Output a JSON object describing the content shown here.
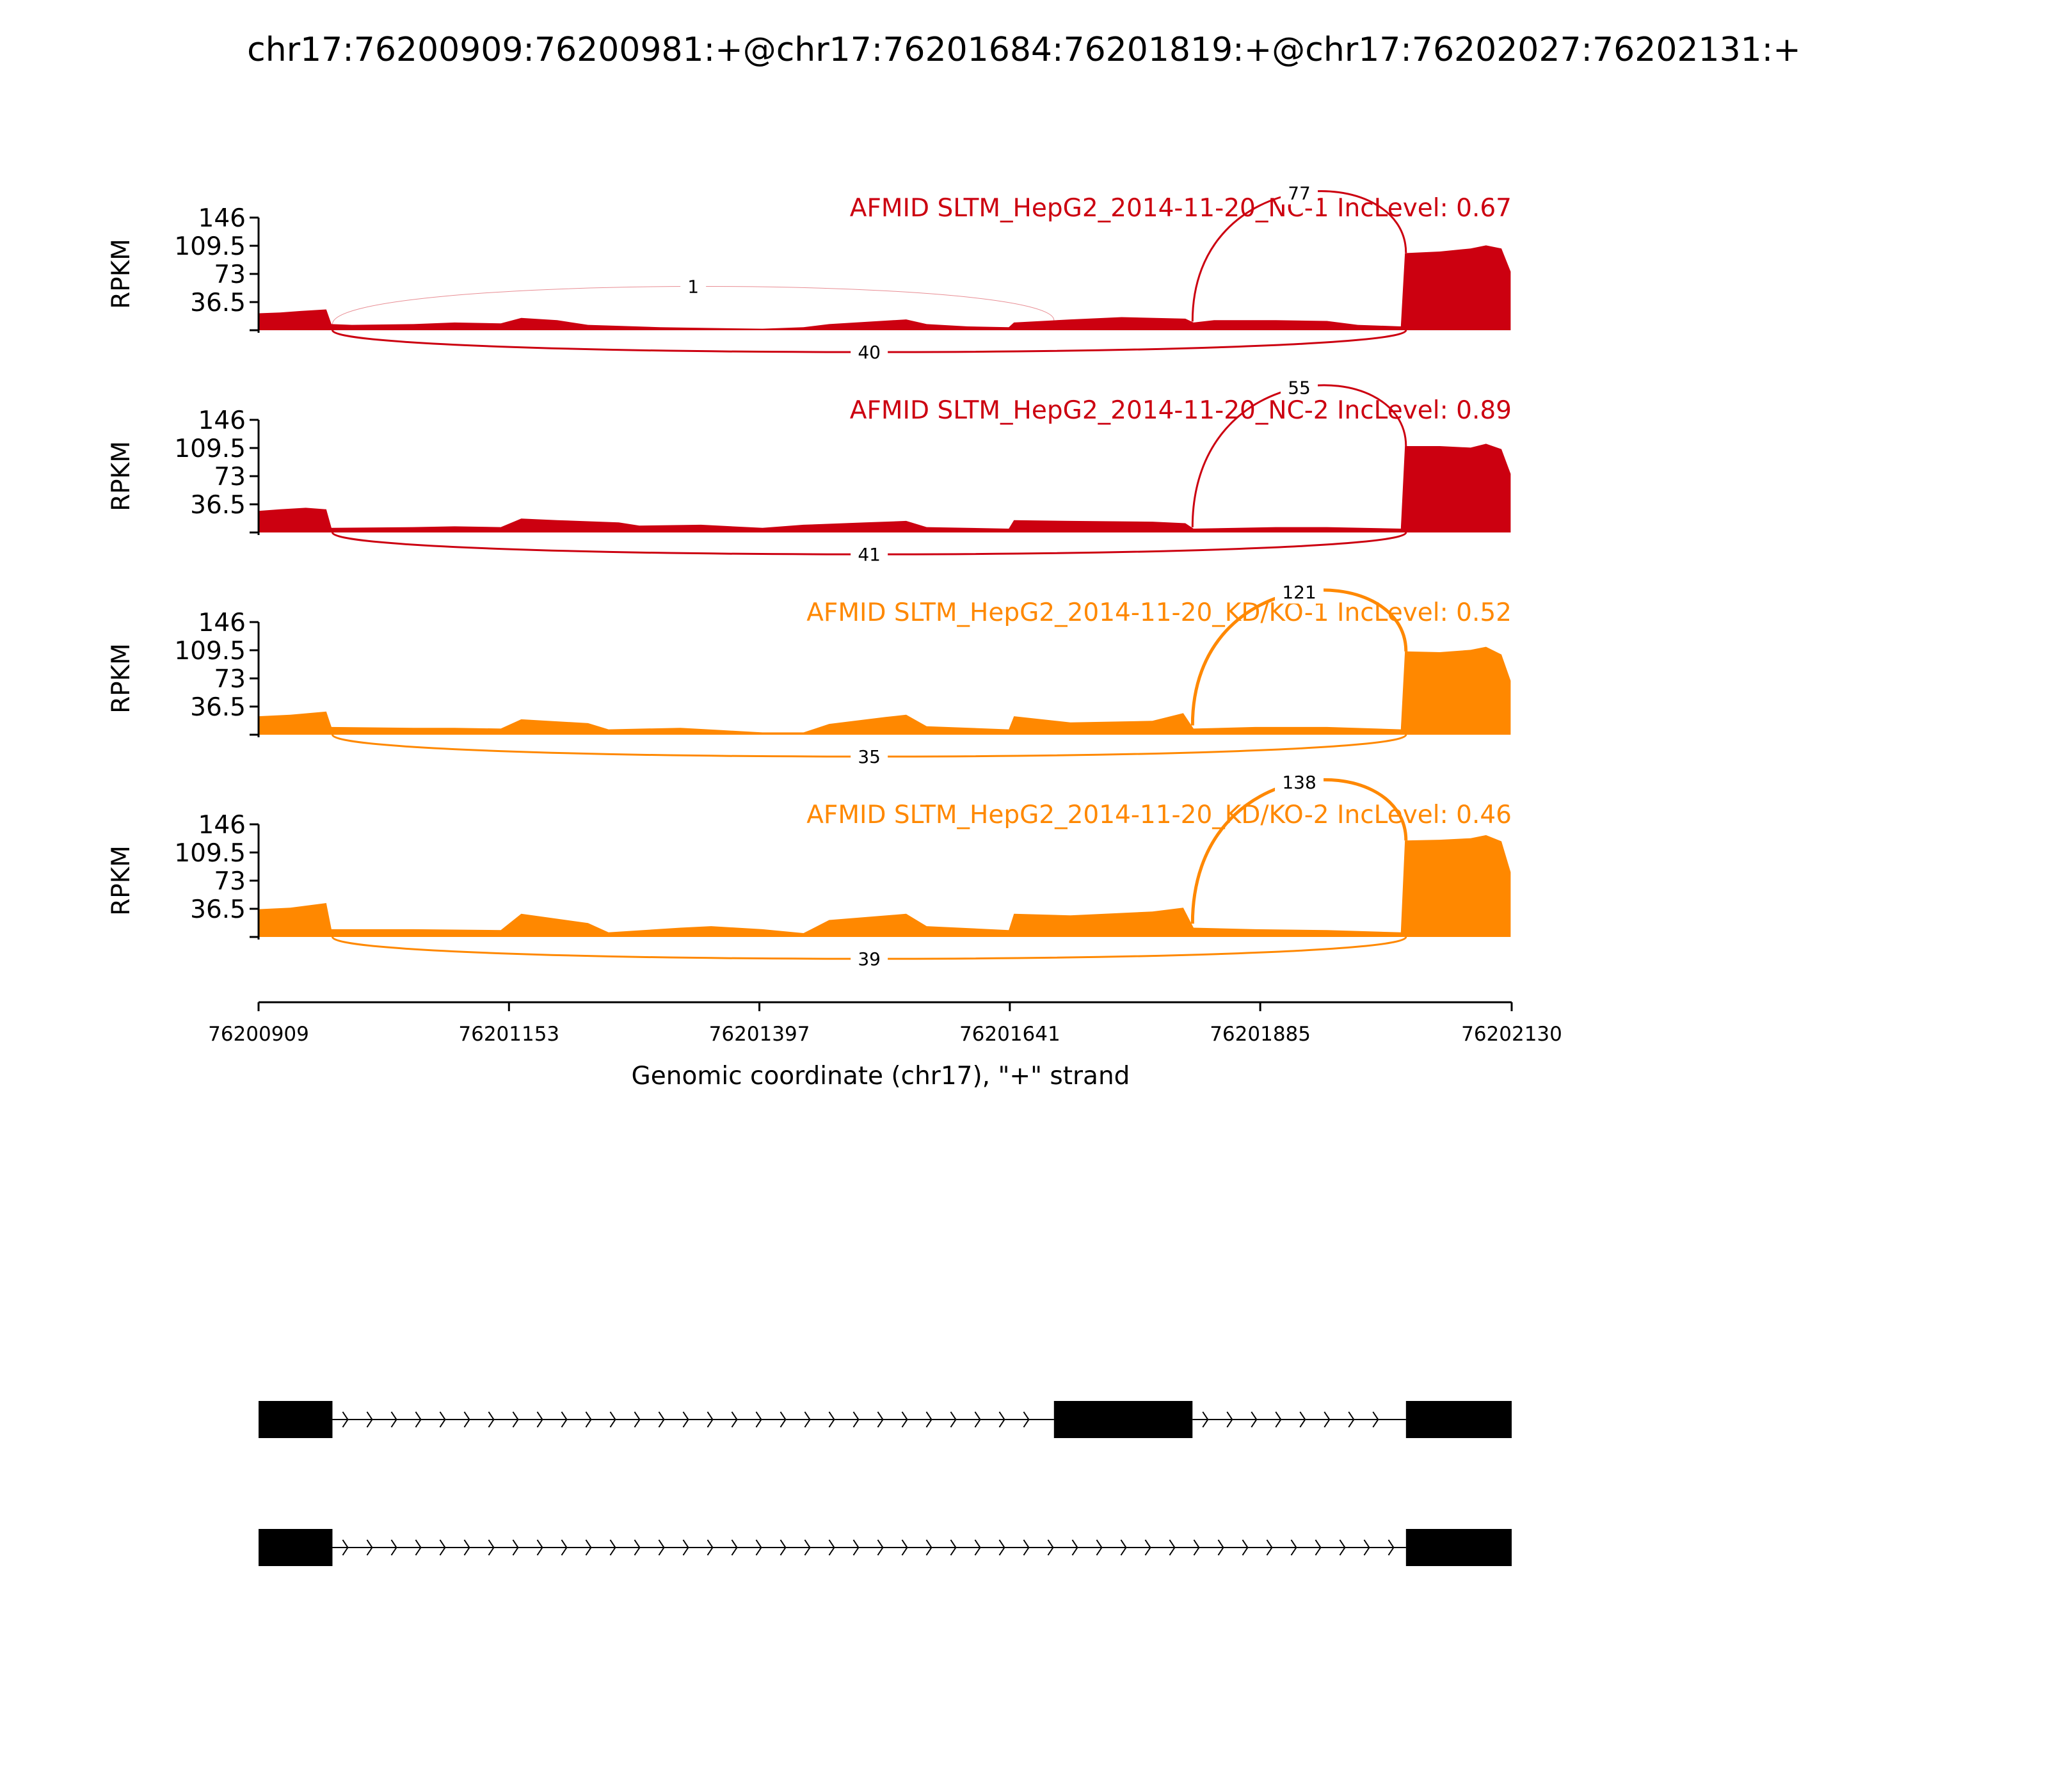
{
  "chart_data": {
    "type": "area",
    "title": "chr17:76200909:76200981:+@chr17:76201684:76201819:+@chr17:76202027:76202131:+",
    "xlabel": "Genomic coordinate (chr17), \"+\" strand",
    "ylabel": "RPKM",
    "xlim": [
      76200909,
      76202130
    ],
    "ylim": [
      0,
      146
    ],
    "x_ticks": [
      "76200909",
      "76201153",
      "76201397",
      "76201641",
      "76201885",
      "76202130"
    ],
    "y_ticks": [
      "36.5",
      "73",
      "109.5",
      "146"
    ],
    "colors": {
      "nc": "#cc0010",
      "kd": "#ff8800",
      "exon": "#000000"
    },
    "series": [
      {
        "name": "AFMID SLTM_HepG2_2014-11-20_NC-1 IncLevel: 0.67",
        "color": "#cc0010",
        "coverage": [
          [
            76200909,
            22
          ],
          [
            76200930,
            23
          ],
          [
            76200950,
            25
          ],
          [
            76200975,
            27
          ],
          [
            76200980,
            8
          ],
          [
            76201000,
            7
          ],
          [
            76201060,
            8
          ],
          [
            76201100,
            10
          ],
          [
            76201145,
            9
          ],
          [
            76201165,
            16
          ],
          [
            76201200,
            13
          ],
          [
            76201230,
            7
          ],
          [
            76201300,
            4
          ],
          [
            76201345,
            3
          ],
          [
            76201400,
            2
          ],
          [
            76201440,
            4
          ],
          [
            76201465,
            8
          ],
          [
            76201540,
            14
          ],
          [
            76201560,
            8
          ],
          [
            76201600,
            5
          ],
          [
            76201640,
            4
          ],
          [
            76201645,
            10
          ],
          [
            76201700,
            14
          ],
          [
            76201750,
            17
          ],
          [
            76201812,
            15
          ],
          [
            76201820,
            10
          ],
          [
            76201840,
            13
          ],
          [
            76201900,
            13
          ],
          [
            76201950,
            12
          ],
          [
            76201980,
            7
          ],
          [
            76202022,
            5
          ],
          [
            76202026,
            100
          ],
          [
            76202060,
            102
          ],
          [
            76202090,
            106
          ],
          [
            76202105,
            110
          ],
          [
            76202120,
            106
          ],
          [
            76202129,
            76
          ]
        ],
        "junctions": [
          {
            "from": 76200981,
            "to": 76201684,
            "count": "1",
            "side": "above",
            "height": 55
          },
          {
            "from": 76201819,
            "to": 76202027,
            "count": "77",
            "side": "above",
            "height": 110
          },
          {
            "from": 76200981,
            "to": 76202027,
            "count": "40",
            "side": "below",
            "height": 35
          }
        ]
      },
      {
        "name": "AFMID SLTM_HepG2_2014-11-20_NC-2 IncLevel: 0.89",
        "color": "#cc0010",
        "coverage": [
          [
            76200909,
            28
          ],
          [
            76200930,
            30
          ],
          [
            76200955,
            32
          ],
          [
            76200975,
            30
          ],
          [
            76200980,
            6
          ],
          [
            76201060,
            7
          ],
          [
            76201100,
            8
          ],
          [
            76201145,
            7
          ],
          [
            76201165,
            18
          ],
          [
            76201200,
            16
          ],
          [
            76201260,
            13
          ],
          [
            76201280,
            9
          ],
          [
            76201340,
            10
          ],
          [
            76201400,
            6
          ],
          [
            76201440,
            10
          ],
          [
            76201500,
            13
          ],
          [
            76201540,
            15
          ],
          [
            76201560,
            7
          ],
          [
            76201640,
            5
          ],
          [
            76201645,
            16
          ],
          [
            76201700,
            15
          ],
          [
            76201780,
            14
          ],
          [
            76201812,
            12
          ],
          [
            76201820,
            5
          ],
          [
            76201900,
            7
          ],
          [
            76201950,
            7
          ],
          [
            76202022,
            5
          ],
          [
            76202026,
            112
          ],
          [
            76202060,
            112
          ],
          [
            76202090,
            110
          ],
          [
            76202105,
            115
          ],
          [
            76202120,
            108
          ],
          [
            76202129,
            76
          ]
        ],
        "junctions": [
          {
            "from": 76201819,
            "to": 76202027,
            "count": "55",
            "side": "above",
            "height": 110
          },
          {
            "from": 76200981,
            "to": 76202027,
            "count": "41",
            "side": "below",
            "height": 35
          }
        ]
      },
      {
        "name": "AFMID SLTM_HepG2_2014-11-20_KD/KO-1 IncLevel: 0.52",
        "color": "#ff8800",
        "coverage": [
          [
            76200909,
            24
          ],
          [
            76200940,
            26
          ],
          [
            76200975,
            30
          ],
          [
            76200980,
            10
          ],
          [
            76201060,
            9
          ],
          [
            76201100,
            9
          ],
          [
            76201145,
            8
          ],
          [
            76201165,
            20
          ],
          [
            76201230,
            15
          ],
          [
            76201250,
            7
          ],
          [
            76201320,
            9
          ],
          [
            76201360,
            6
          ],
          [
            76201400,
            3
          ],
          [
            76201440,
            3
          ],
          [
            76201465,
            14
          ],
          [
            76201520,
            23
          ],
          [
            76201540,
            26
          ],
          [
            76201560,
            11
          ],
          [
            76201640,
            7
          ],
          [
            76201645,
            24
          ],
          [
            76201700,
            16
          ],
          [
            76201780,
            18
          ],
          [
            76201810,
            28
          ],
          [
            76201820,
            8
          ],
          [
            76201880,
            10
          ],
          [
            76201950,
            10
          ],
          [
            76202022,
            7
          ],
          [
            76202026,
            108
          ],
          [
            76202060,
            107
          ],
          [
            76202090,
            110
          ],
          [
            76202105,
            114
          ],
          [
            76202120,
            104
          ],
          [
            76202129,
            70
          ]
        ],
        "junctions": [
          {
            "from": 76201819,
            "to": 76202027,
            "count": "121",
            "side": "above",
            "height": 110
          },
          {
            "from": 76200981,
            "to": 76202027,
            "count": "35",
            "side": "below",
            "height": 35
          }
        ]
      },
      {
        "name": "AFMID SLTM_HepG2_2014-11-20_KD/KO-2 IncLevel: 0.46",
        "color": "#ff8800",
        "coverage": [
          [
            76200909,
            36
          ],
          [
            76200940,
            38
          ],
          [
            76200975,
            44
          ],
          [
            76200980,
            10
          ],
          [
            76201060,
            10
          ],
          [
            76201145,
            9
          ],
          [
            76201165,
            30
          ],
          [
            76201230,
            18
          ],
          [
            76201250,
            6
          ],
          [
            76201320,
            12
          ],
          [
            76201350,
            14
          ],
          [
            76201400,
            10
          ],
          [
            76201440,
            5
          ],
          [
            76201465,
            22
          ],
          [
            76201540,
            30
          ],
          [
            76201560,
            14
          ],
          [
            76201640,
            9
          ],
          [
            76201645,
            30
          ],
          [
            76201700,
            28
          ],
          [
            76201780,
            33
          ],
          [
            76201810,
            38
          ],
          [
            76201820,
            12
          ],
          [
            76201880,
            10
          ],
          [
            76201950,
            9
          ],
          [
            76202022,
            6
          ],
          [
            76202026,
            125
          ],
          [
            76202060,
            126
          ],
          [
            76202090,
            128
          ],
          [
            76202105,
            132
          ],
          [
            76202120,
            124
          ],
          [
            76202129,
            84
          ]
        ],
        "junctions": [
          {
            "from": 76201819,
            "to": 76202027,
            "count": "138",
            "side": "above",
            "height": 110
          },
          {
            "from": 76200981,
            "to": 76202027,
            "count": "39",
            "side": "below",
            "height": 35
          }
        ]
      }
    ],
    "isoforms": [
      {
        "exons": [
          [
            76200909,
            76200981
          ],
          [
            76201684,
            76201819
          ],
          [
            76202027,
            76202130
          ]
        ]
      },
      {
        "exons": [
          [
            76200909,
            76200981
          ],
          [
            76202027,
            76202130
          ]
        ]
      }
    ]
  }
}
